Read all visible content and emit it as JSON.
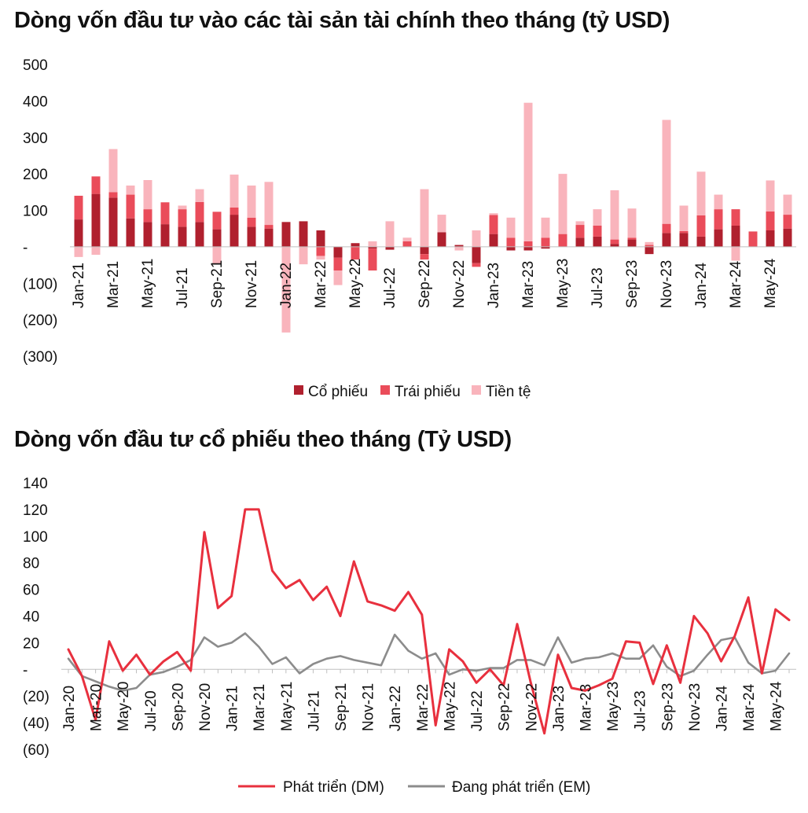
{
  "charts": [
    {
      "type": "bar",
      "stacked": true,
      "title": "Dòng vốn đầu tư vào các tài sản tài chính theo tháng (tỷ USD)",
      "ylim": [
        -300,
        500
      ],
      "yticks": [
        500,
        400,
        300,
        200,
        100,
        0,
        -100,
        -200,
        -300
      ],
      "ytick_labels": [
        "500",
        "400",
        "300",
        "200",
        "100",
        "-",
        "(100)",
        "(200)",
        "(300)"
      ],
      "grid": false,
      "legend_position": "bottom",
      "categories": [
        "Jan-21",
        "Feb-21",
        "Mar-21",
        "Apr-21",
        "May-21",
        "Jun-21",
        "Jul-21",
        "Aug-21",
        "Sep-21",
        "Oct-21",
        "Nov-21",
        "Dec-21",
        "Jan-22",
        "Feb-22",
        "Mar-22",
        "Apr-22",
        "May-22",
        "Jun-22",
        "Jul-22",
        "Aug-22",
        "Sep-22",
        "Oct-22",
        "Nov-22",
        "Dec-22",
        "Jan-23",
        "Feb-23",
        "Mar-23",
        "Apr-23",
        "May-23",
        "Jun-23",
        "Jul-23",
        "Aug-23",
        "Sep-23",
        "Oct-23",
        "Nov-23",
        "Dec-23",
        "Jan-24",
        "Feb-24",
        "Mar-24",
        "Apr-24",
        "May-24",
        "Jun-24"
      ],
      "x_tick_labels": [
        "Jan-21",
        "",
        "Mar-21",
        "",
        "May-21",
        "",
        "Jul-21",
        "",
        "Sep-21",
        "",
        "Nov-21",
        "",
        "Jan-22",
        "",
        "Mar-22",
        "",
        "May-22",
        "",
        "Jul-22",
        "",
        "Sep-22",
        "",
        "Nov-22",
        "",
        "Jan-23",
        "",
        "Mar-23",
        "",
        "May-23",
        "",
        "Jul-23",
        "",
        "Sep-23",
        "",
        "Nov-23",
        "",
        "Jan-24",
        "",
        "Mar-24",
        "",
        "May-24",
        ""
      ],
      "series": [
        {
          "name": "Cổ phiếu",
          "color": "#b0202e",
          "values": [
            75,
            145,
            135,
            78,
            68,
            62,
            55,
            68,
            48,
            88,
            55,
            50,
            68,
            70,
            45,
            -30,
            10,
            -5,
            -8,
            0,
            -20,
            40,
            5,
            -45,
            35,
            -10,
            -10,
            -5,
            0,
            25,
            28,
            8,
            20,
            -20,
            38,
            38,
            28,
            48,
            58,
            0,
            45,
            50
          ]
        },
        {
          "name": "Trái phiếu",
          "color": "#ea4c5a",
          "values": [
            65,
            48,
            15,
            65,
            35,
            60,
            48,
            55,
            48,
            20,
            25,
            10,
            0,
            0,
            -25,
            -35,
            -35,
            -60,
            0,
            15,
            -15,
            0,
            0,
            -10,
            52,
            25,
            15,
            25,
            35,
            35,
            30,
            12,
            5,
            5,
            25,
            5,
            58,
            55,
            45,
            42,
            52,
            38
          ]
        },
        {
          "name": "Tiền tệ",
          "color": "#f9b4bc",
          "values": [
            -28,
            -22,
            118,
            25,
            80,
            0,
            10,
            35,
            -48,
            90,
            88,
            118,
            -235,
            -48,
            -10,
            -40,
            0,
            15,
            70,
            10,
            158,
            48,
            -10,
            45,
            5,
            55,
            380,
            55,
            165,
            10,
            45,
            135,
            80,
            8,
            285,
            70,
            120,
            40,
            -38,
            0,
            85,
            55
          ]
        }
      ]
    },
    {
      "type": "line",
      "title": "Dòng vốn đầu tư cổ phiếu theo tháng (Tỷ USD)",
      "ylim": [
        -60,
        140
      ],
      "yticks": [
        140,
        120,
        100,
        80,
        60,
        40,
        20,
        0,
        -20,
        -40,
        -60
      ],
      "ytick_labels": [
        "140",
        "120",
        "100",
        "80",
        "60",
        "40",
        "20",
        "-",
        "(20)",
        "(40)",
        "(60)"
      ],
      "grid": false,
      "legend_position": "bottom",
      "categories": [
        "Jan-20",
        "Feb-20",
        "Mar-20",
        "Apr-20",
        "May-20",
        "Jun-20",
        "Jul-20",
        "Aug-20",
        "Sep-20",
        "Oct-20",
        "Nov-20",
        "Dec-20",
        "Jan-21",
        "Feb-21",
        "Mar-21",
        "Apr-21",
        "May-21",
        "Jun-21",
        "Jul-21",
        "Aug-21",
        "Sep-21",
        "Oct-21",
        "Nov-21",
        "Dec-21",
        "Jan-22",
        "Feb-22",
        "Mar-22",
        "Apr-22",
        "May-22",
        "Jun-22",
        "Jul-22",
        "Aug-22",
        "Sep-22",
        "Oct-22",
        "Nov-22",
        "Dec-22",
        "Jan-23",
        "Feb-23",
        "Mar-23",
        "Apr-23",
        "May-23",
        "Jun-23",
        "Jul-23",
        "Aug-23",
        "Sep-23",
        "Oct-23",
        "Nov-23",
        "Dec-23",
        "Jan-24",
        "Feb-24",
        "Mar-24",
        "Apr-24",
        "May-24",
        "Jun-24"
      ],
      "x_tick_labels": [
        "Jan-20",
        "",
        "Mar-20",
        "",
        "May-20",
        "",
        "Jul-20",
        "",
        "Sep-20",
        "",
        "Nov-20",
        "",
        "Jan-21",
        "",
        "Mar-21",
        "",
        "May-21",
        "",
        "Jul-21",
        "",
        "Sep-21",
        "",
        "Nov-21",
        "",
        "Jan-22",
        "",
        "Mar-22",
        "",
        "May-22",
        "",
        "Jul-22",
        "",
        "Sep-22",
        "",
        "Nov-22",
        "",
        "Jan-23",
        "",
        "Mar-23",
        "",
        "May-23",
        "",
        "Jul-23",
        "",
        "Sep-23",
        "",
        "Nov-23",
        "",
        "Jan-24",
        "",
        "Mar-24",
        "",
        "May-24",
        ""
      ],
      "series": [
        {
          "name": "Phát triển (DM)",
          "color": "#e8303e",
          "values": [
            15,
            -5,
            -38,
            21,
            -1,
            11,
            -4,
            6,
            13,
            -1,
            103,
            46,
            55,
            120,
            120,
            74,
            61,
            67,
            52,
            62,
            40,
            81,
            51,
            48,
            44,
            58,
            41,
            -42,
            15,
            6,
            -10,
            0,
            -12,
            34,
            -10,
            -48,
            11,
            -14,
            -16,
            -12,
            -7,
            21,
            20,
            -11,
            18,
            -10,
            40,
            27,
            6,
            25,
            54,
            -3,
            45,
            37
          ]
        },
        {
          "name": "Đang phát triển (EM)",
          "color": "#8c8c8c",
          "values": [
            8,
            -5,
            -9,
            -13,
            -16,
            -14,
            -4,
            -2,
            2,
            7,
            24,
            17,
            20,
            27,
            17,
            4,
            9,
            -3,
            4,
            8,
            10,
            7,
            5,
            3,
            26,
            14,
            8,
            12,
            -4,
            0,
            -1,
            1,
            1,
            7,
            7,
            3,
            24,
            5,
            8,
            9,
            12,
            8,
            8,
            18,
            2,
            -5,
            -1,
            11,
            22,
            24,
            5,
            -3,
            -1,
            12
          ]
        }
      ]
    }
  ]
}
